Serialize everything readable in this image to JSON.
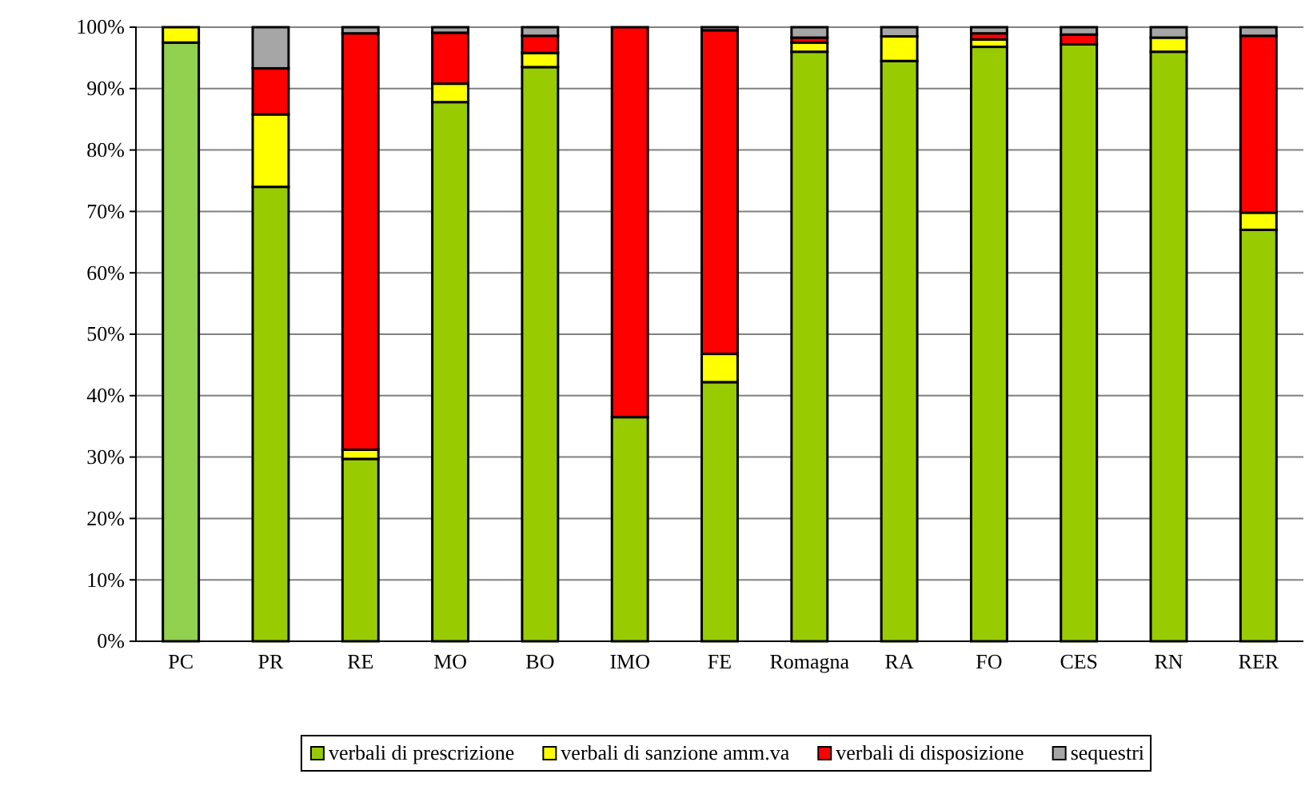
{
  "chart_data": {
    "type": "bar",
    "stacked": true,
    "categories": [
      "PC",
      "PR",
      "RE",
      "MO",
      "BO",
      "IMO",
      "FE",
      "Romagna",
      "RA",
      "FO",
      "CES",
      "RN",
      "RER"
    ],
    "series": [
      {
        "name": "verbali di prescrizione",
        "color": "#99cc00",
        "colors": [
          "#92d050",
          "#99cc00",
          "#99cc00",
          "#99cc00",
          "#99cc00",
          "#99cc00",
          "#99cc00",
          "#99cc00",
          "#99cc00",
          "#99cc00",
          "#99cc00",
          "#99cc00",
          "#99cc00"
        ],
        "values": [
          97.5,
          74,
          29.7,
          87.8,
          93.5,
          36.5,
          42.2,
          96,
          94.5,
          96.8,
          97.2,
          96,
          67
        ]
      },
      {
        "name": "verbali di sanzione amm.va",
        "color": "#ffff00",
        "values": [
          2.5,
          11.8,
          1.5,
          3,
          2.3,
          0,
          4.6,
          1.5,
          4,
          1.2,
          null,
          2.3,
          2.8
        ]
      },
      {
        "name": "verbali di disposizione",
        "color": "#ff0000",
        "values": [
          0,
          7.5,
          67.8,
          8.3,
          2.8,
          63.5,
          52.7,
          0.8,
          0,
          1,
          1.6,
          0,
          28.8
        ]
      },
      {
        "name": "sequestri",
        "color": "#a6a6a6",
        "values": [
          0,
          6.7,
          1,
          0.9,
          1.4,
          0,
          0.5,
          1.7,
          1.5,
          1,
          1.2,
          1.7,
          1.4
        ]
      }
    ],
    "ylim": [
      0,
      100
    ],
    "yticks": [
      {
        "value": 0,
        "label": "0%"
      },
      {
        "value": 10,
        "label": "10%"
      },
      {
        "value": 20,
        "label": "20%"
      },
      {
        "value": 30,
        "label": "30%"
      },
      {
        "value": 40,
        "label": "40%"
      },
      {
        "value": 50,
        "label": "50%"
      },
      {
        "value": 60,
        "label": "60%"
      },
      {
        "value": 70,
        "label": "70%"
      },
      {
        "value": 80,
        "label": "80%"
      },
      {
        "value": 90,
        "label": "90%"
      },
      {
        "value": 100,
        "label": "100%"
      }
    ],
    "grid": "y",
    "legend": "bottom"
  }
}
